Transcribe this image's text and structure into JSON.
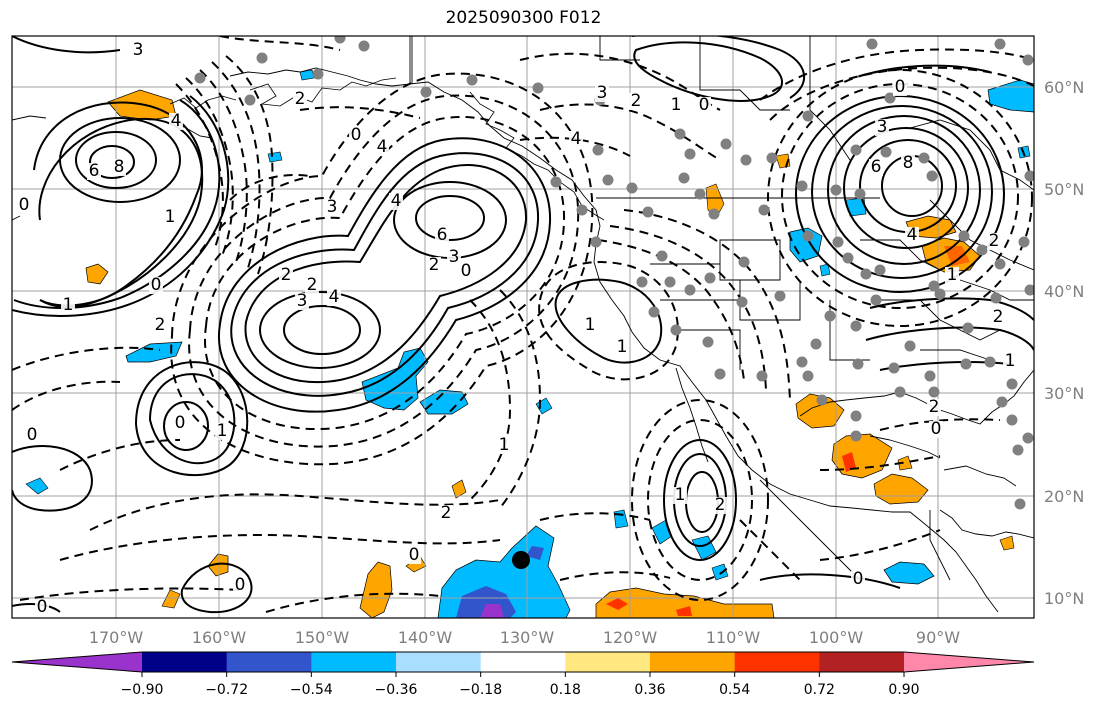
{
  "title": "2025090300 F012",
  "longitude_labels": [
    "170°W",
    "160°W",
    "150°W",
    "140°W",
    "130°W",
    "120°W",
    "110°W",
    "100°W",
    "90°W"
  ],
  "latitude_labels": [
    "60°N",
    "50°N",
    "40°N",
    "30°N",
    "20°N",
    "10°N"
  ],
  "colorbar": {
    "colors": [
      "#9933cc",
      "#000088",
      "#3355cc",
      "#00bbff",
      "#aadeff",
      "#ffffff",
      "#ffe880",
      "#ffa500",
      "#ff3300",
      "#b22222",
      "#ff88aa"
    ],
    "tick_labels": [
      "−0.90",
      "−0.72",
      "−0.54",
      "−0.36",
      "−0.18",
      "0.18",
      "0.36",
      "0.54",
      "0.72",
      "0.90"
    ]
  },
  "contour_labels": [
    {
      "text": "3"
    },
    {
      "text": "4"
    },
    {
      "text": "6"
    },
    {
      "text": "8"
    },
    {
      "text": "0"
    },
    {
      "text": "1"
    },
    {
      "text": "0"
    },
    {
      "text": "2"
    },
    {
      "text": "3"
    },
    {
      "text": "4"
    },
    {
      "text": "6"
    },
    {
      "text": "2"
    },
    {
      "text": "3"
    },
    {
      "text": "0"
    },
    {
      "text": "3"
    },
    {
      "text": "4"
    },
    {
      "text": "2"
    },
    {
      "text": "2"
    },
    {
      "text": "4"
    },
    {
      "text": "0"
    },
    {
      "text": "2"
    },
    {
      "text": "1"
    },
    {
      "text": "0"
    },
    {
      "text": "4"
    },
    {
      "text": "3"
    },
    {
      "text": "2"
    },
    {
      "text": "1"
    },
    {
      "text": "0"
    },
    {
      "text": "3"
    },
    {
      "text": "6"
    },
    {
      "text": "8"
    },
    {
      "text": "4"
    },
    {
      "text": "2"
    },
    {
      "text": "1"
    },
    {
      "text": "0"
    },
    {
      "text": "2"
    },
    {
      "text": "1"
    },
    {
      "text": "2"
    },
    {
      "text": "0"
    },
    {
      "text": "1"
    },
    {
      "text": "1"
    },
    {
      "text": "0"
    },
    {
      "text": "0"
    },
    {
      "text": "0"
    },
    {
      "text": "1"
    },
    {
      "text": "2"
    },
    {
      "text": "1"
    },
    {
      "text": "0"
    },
    {
      "text": "0"
    },
    {
      "text": "1"
    },
    {
      "text": "2"
    }
  ]
}
